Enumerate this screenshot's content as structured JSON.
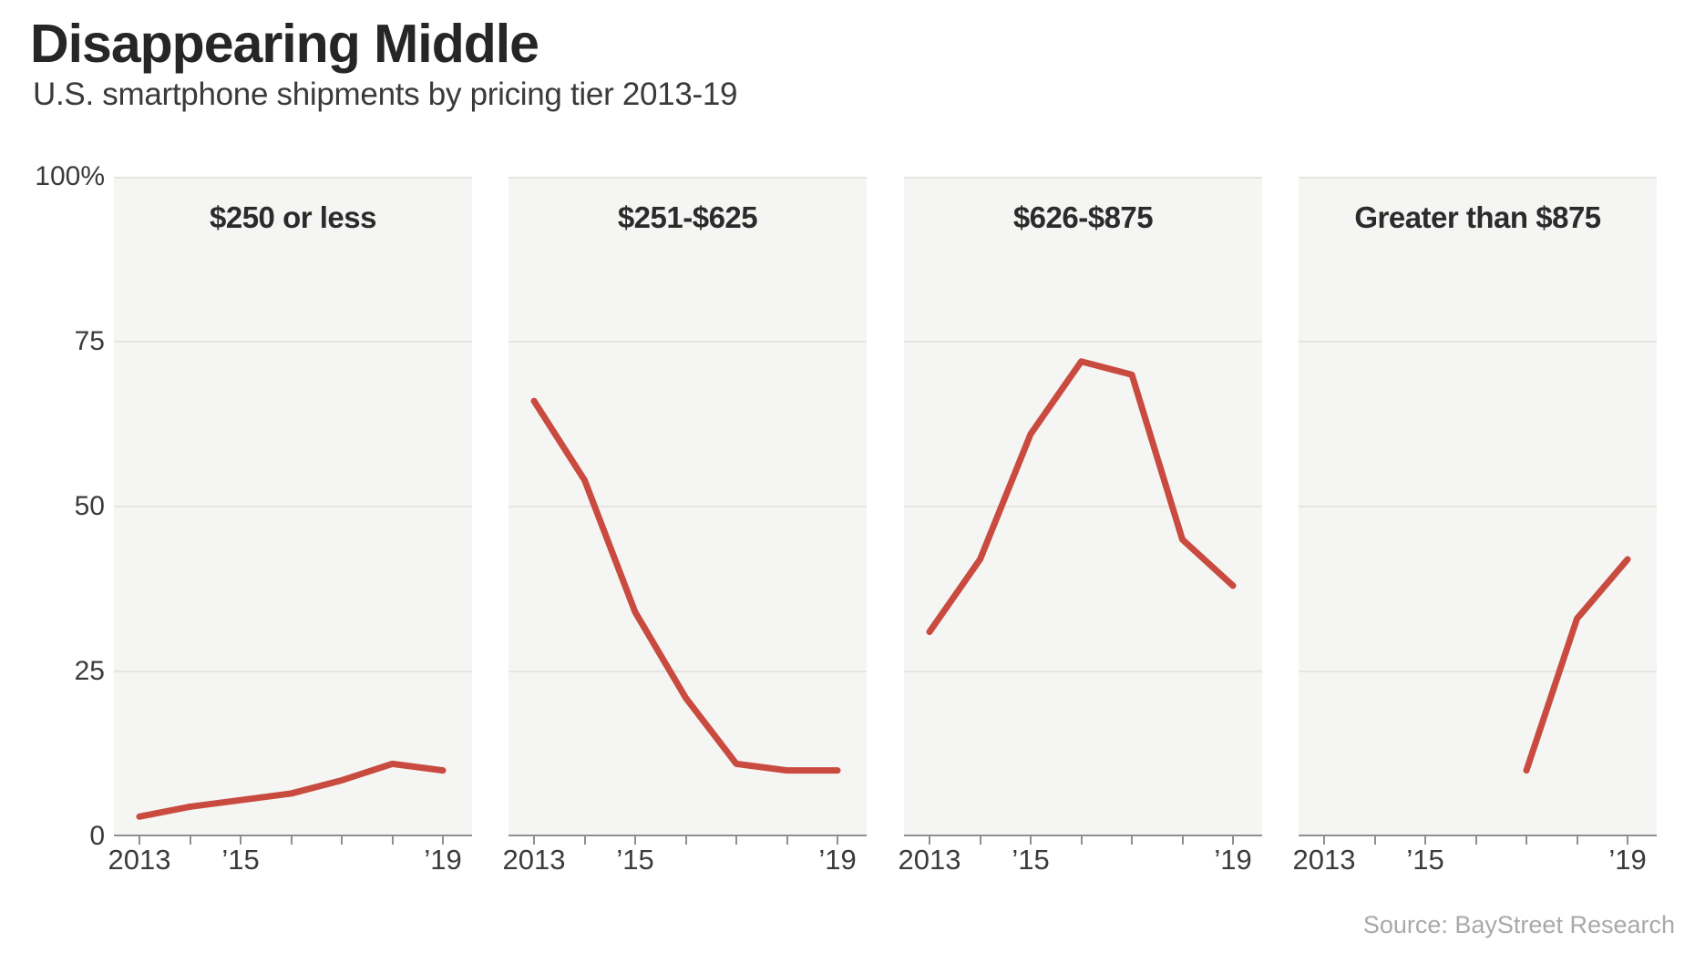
{
  "chart_data": {
    "type": "line",
    "layout": "small_multiples",
    "title": "Disappearing Middle",
    "subtitle": "U.S. smartphone shipments by pricing tier 2013-19",
    "source": "Source: BayStreet Research",
    "x": [
      2013,
      2014,
      2015,
      2016,
      2017,
      2018,
      2019
    ],
    "x_tick_labels": [
      {
        "year_index": 0,
        "label": "2013"
      },
      {
        "year_index": 2,
        "label": "’15"
      },
      {
        "year_index": 6,
        "label": "’19"
      }
    ],
    "y_ticks": [
      {
        "value": 0,
        "label": "0"
      },
      {
        "value": 25,
        "label": "25"
      },
      {
        "value": 50,
        "label": "50"
      },
      {
        "value": 75,
        "label": "75"
      },
      {
        "value": 100,
        "label": "100%"
      }
    ],
    "ylim": [
      0,
      100
    ],
    "grid": true,
    "line_color": "#c94a3f",
    "panel_bg": "#f5f5f3",
    "panels": [
      {
        "title": "$250 or less",
        "values": [
          3,
          4.5,
          5.5,
          6.5,
          8.5,
          11,
          10
        ]
      },
      {
        "title": "$251-$625",
        "values": [
          66,
          54,
          34,
          21,
          11,
          10,
          10
        ]
      },
      {
        "title": "$626-$875",
        "values": [
          31,
          42,
          61,
          72,
          70,
          45,
          38
        ]
      },
      {
        "title": "Greater than $875",
        "values": [
          null,
          null,
          null,
          null,
          10,
          33,
          42
        ]
      }
    ]
  }
}
